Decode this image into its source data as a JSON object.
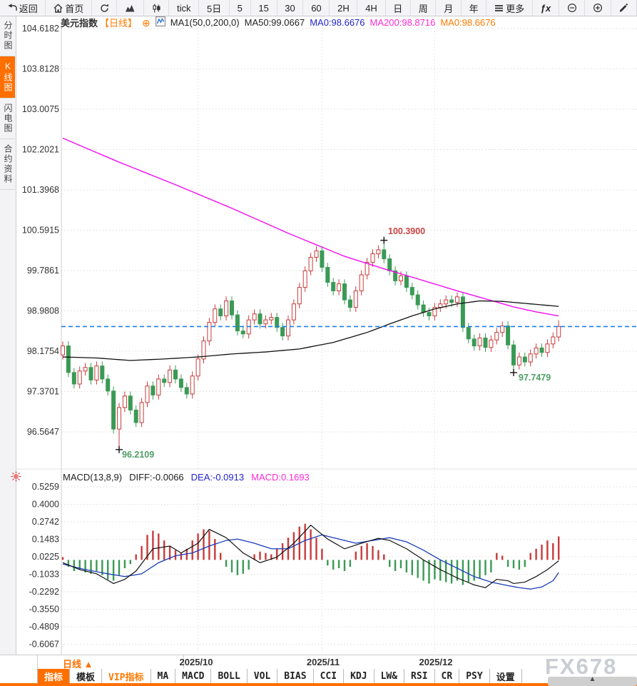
{
  "toolbar": {
    "items": [
      {
        "name": "back-button",
        "icon": "back-arrow-icon",
        "label": "返回"
      },
      {
        "name": "home-button",
        "icon": "home-icon",
        "label": "首页"
      },
      {
        "name": "refresh-button",
        "icon": "refresh-icon",
        "label": ""
      },
      {
        "name": "line-chart-button",
        "icon": "mountain-chart-icon",
        "label": ""
      },
      {
        "name": "candlestick-chart-button",
        "icon": "candlestick-icon",
        "label": ""
      },
      {
        "name": "period-tick-button",
        "icon": "",
        "label": "tick"
      },
      {
        "name": "period-5d-button",
        "icon": "",
        "label": "5日"
      },
      {
        "name": "period-5-button",
        "icon": "",
        "label": "5"
      },
      {
        "name": "period-15-button",
        "icon": "",
        "label": "15"
      },
      {
        "name": "period-30-button",
        "icon": "",
        "label": "30"
      },
      {
        "name": "period-60-button",
        "icon": "",
        "label": "60"
      },
      {
        "name": "period-2h-button",
        "icon": "",
        "label": "2H"
      },
      {
        "name": "period-4h-button",
        "icon": "",
        "label": "4H"
      },
      {
        "name": "period-day-button",
        "icon": "",
        "label": "日"
      },
      {
        "name": "period-week-button",
        "icon": "",
        "label": "周"
      },
      {
        "name": "period-month-button",
        "icon": "",
        "label": "月"
      },
      {
        "name": "period-year-button",
        "icon": "",
        "label": "年"
      },
      {
        "name": "more-button",
        "icon": "menu-icon",
        "label": "更多"
      },
      {
        "name": "formula-button",
        "icon": "",
        "label": "ƒx"
      },
      {
        "name": "zoom-out-button",
        "icon": "zoom-out-icon",
        "label": ""
      },
      {
        "name": "zoom-in-button",
        "icon": "zoom-in-icon",
        "label": ""
      },
      {
        "name": "draw-button",
        "icon": "pencil-icon",
        "label": ""
      }
    ]
  },
  "legend": {
    "symbol": "美元指数",
    "period": "【日线】",
    "add_glyph": "⊕",
    "ma_settings": "MA1(50,0,200,0)",
    "ma50": "MA50:99.0667",
    "ma0_blue": "MA0:98.6676",
    "ma200": "MA200:98.8716",
    "ma0_orange": "MA0:98.6676"
  },
  "sidebar": {
    "items": [
      {
        "name": "minute-chart-tab",
        "label": "分时图",
        "active": false
      },
      {
        "name": "kline-chart-tab",
        "label": "K线图",
        "active": true
      },
      {
        "name": "lightning-chart-tab",
        "label": "闪电图",
        "active": false
      },
      {
        "name": "contract-info-tab",
        "label": "合约资料",
        "active": false
      }
    ]
  },
  "macd_header": {
    "title": "MACD(13,8,9)",
    "diff": "DIFF:-0.0066",
    "dea": "DEA:-0.0913",
    "macd": "MACD:0.1693"
  },
  "bottom_axis": {
    "period_label": "日线 ▲",
    "months": [
      "2025/10",
      "2025/11",
      "2025/12"
    ]
  },
  "tabs": [
    {
      "name": "indicator-tab",
      "label": "指标",
      "style": "active"
    },
    {
      "name": "template-tab",
      "label": "模板",
      "style": ""
    },
    {
      "name": "vip-indicator-tab",
      "label": "VIP指标",
      "style": "vip"
    },
    {
      "name": "ma-tab",
      "label": "MA",
      "style": ""
    },
    {
      "name": "macd-tab",
      "label": "MACD",
      "style": ""
    },
    {
      "name": "boll-tab",
      "label": "BOLL",
      "style": ""
    },
    {
      "name": "vol-tab",
      "label": "VOL",
      "style": ""
    },
    {
      "name": "bias-tab",
      "label": "BIAS",
      "style": ""
    },
    {
      "name": "cci-tab",
      "label": "CCI",
      "style": ""
    },
    {
      "name": "kdj-tab",
      "label": "KDJ",
      "style": ""
    },
    {
      "name": "lw-tab",
      "label": "LW&",
      "style": ""
    },
    {
      "name": "rsi-tab",
      "label": "RSI",
      "style": ""
    },
    {
      "name": "cr-tab",
      "label": "CR",
      "style": ""
    },
    {
      "name": "psy-tab",
      "label": "PSY",
      "style": ""
    },
    {
      "name": "settings-tab",
      "label": "设置",
      "style": ""
    }
  ],
  "watermark": "FX678",
  "icons": {
    "collapse_arrow": "▲"
  },
  "colors": {
    "accent_orange": "#ff6f00",
    "candle_up": "#c73b3b",
    "candle_down": "#3a9a55",
    "ma50": "#111111",
    "ma200": "#f20df2",
    "dea_blue": "#1a3dbb",
    "diff_black": "#111111",
    "current_price_line": "#1f7fe8",
    "annotation_high": "#cc4444",
    "annotation_low": "#4d9e63"
  },
  "chart_data": {
    "type": "candlestick+macd",
    "title": "美元指数 日线",
    "price_axis": {
      "ticks": [
        104.6182,
        103.8128,
        103.0075,
        102.2021,
        101.3968,
        100.5915,
        99.7861,
        98.9808,
        98.1754,
        97.3701,
        96.5647
      ]
    },
    "macd_axis": {
      "ticks": [
        0.5259,
        0.4,
        0.2742,
        0.1483,
        0.0225,
        -0.1033,
        -0.2292,
        -0.355,
        -0.4809,
        -0.6067
      ]
    },
    "current_price": 98.6676,
    "x_months": [
      {
        "label": "2025/10",
        "index": 24
      },
      {
        "label": "2025/11",
        "index": 46
      },
      {
        "label": "2025/12",
        "index": 66
      }
    ],
    "candles": {
      "first_open": 98.1,
      "wick": 0.09,
      "closes": [
        98.28,
        97.75,
        97.52,
        97.78,
        97.85,
        97.6,
        97.88,
        97.62,
        97.38,
        96.62,
        97.05,
        97.28,
        97.0,
        96.75,
        97.15,
        97.48,
        97.3,
        97.62,
        97.55,
        97.8,
        97.62,
        97.45,
        97.32,
        97.68,
        98.02,
        98.38,
        98.75,
        99.02,
        98.88,
        99.18,
        98.9,
        98.58,
        98.52,
        98.8,
        98.92,
        98.72,
        98.8,
        98.85,
        98.65,
        98.48,
        98.8,
        99.12,
        99.45,
        99.78,
        100.05,
        100.18,
        99.85,
        99.55,
        99.38,
        99.52,
        99.2,
        99.05,
        99.38,
        99.7,
        99.95,
        100.12,
        100.2,
        100.02,
        99.78,
        99.58,
        99.68,
        99.45,
        99.3,
        99.1,
        98.95,
        98.88,
        99.05,
        99.12,
        99.2,
        99.15,
        99.26,
        98.65,
        98.42,
        98.28,
        98.44,
        98.25,
        98.4,
        98.55,
        98.68,
        98.3,
        97.9,
        98.06,
        97.96,
        98.12,
        98.24,
        98.15,
        98.32,
        98.46,
        98.67
      ],
      "overrides": {
        "10": {
          "low": 96.2109
        },
        "57": {
          "high": 100.39
        },
        "80": {
          "low": 97.7479
        },
        "88": {
          "high": 98.79
        }
      }
    },
    "ma50_points": [
      [
        0,
        98.06
      ],
      [
        6,
        98.04
      ],
      [
        12,
        97.99
      ],
      [
        18,
        98.02
      ],
      [
        24,
        98.06
      ],
      [
        30,
        98.12
      ],
      [
        36,
        98.16
      ],
      [
        42,
        98.22
      ],
      [
        48,
        98.35
      ],
      [
        54,
        98.55
      ],
      [
        58,
        98.72
      ],
      [
        62,
        98.88
      ],
      [
        66,
        99.02
      ],
      [
        70,
        99.12
      ],
      [
        74,
        99.18
      ],
      [
        78,
        99.17
      ],
      [
        82,
        99.13
      ],
      [
        85,
        99.1
      ],
      [
        88,
        99.07
      ]
    ],
    "ma200_points": [
      [
        0,
        102.43
      ],
      [
        10,
        101.95
      ],
      [
        20,
        101.5
      ],
      [
        30,
        101.03
      ],
      [
        40,
        100.53
      ],
      [
        50,
        100.07
      ],
      [
        57,
        99.82
      ],
      [
        63,
        99.62
      ],
      [
        70,
        99.38
      ],
      [
        75,
        99.22
      ],
      [
        80,
        99.06
      ],
      [
        84,
        98.96
      ],
      [
        88,
        98.88
      ]
    ],
    "macd": {
      "hist": [
        0.02,
        -0.05,
        -0.08,
        -0.07,
        -0.09,
        -0.1,
        -0.08,
        -0.11,
        -0.14,
        -0.15,
        -0.11,
        -0.06,
        -0.03,
        0.04,
        0.1,
        0.18,
        0.21,
        0.19,
        0.14,
        0.1,
        0.07,
        0.05,
        0.08,
        0.14,
        0.19,
        0.22,
        0.21,
        0.15,
        0.05,
        -0.05,
        -0.09,
        -0.11,
        -0.1,
        -0.07,
        0.04,
        0.06,
        0.05,
        0.04,
        0.08,
        0.12,
        0.16,
        0.2,
        0.24,
        0.26,
        0.22,
        0.16,
        0.08,
        -0.04,
        -0.07,
        -0.06,
        -0.08,
        -0.05,
        0.06,
        0.1,
        0.12,
        0.1,
        0.07,
        0.04,
        -0.05,
        -0.08,
        -0.06,
        -0.09,
        -0.11,
        -0.13,
        -0.15,
        -0.17,
        -0.14,
        -0.15,
        -0.16,
        -0.17,
        -0.15,
        -0.18,
        -0.16,
        -0.15,
        -0.13,
        -0.11,
        -0.09,
        0.05,
        0.03,
        -0.05,
        -0.06,
        -0.07,
        -0.05,
        0.05,
        0.08,
        0.11,
        0.14,
        0.12,
        0.169
      ],
      "diff_points": [
        [
          0,
          -0.02
        ],
        [
          3,
          -0.07
        ],
        [
          6,
          -0.1
        ],
        [
          9,
          -0.17
        ],
        [
          11,
          -0.14
        ],
        [
          13,
          -0.08
        ],
        [
          16,
          0.08
        ],
        [
          19,
          0.1
        ],
        [
          21,
          0.05
        ],
        [
          24,
          0.12
        ],
        [
          26,
          0.22
        ],
        [
          29,
          0.16
        ],
        [
          32,
          0.05
        ],
        [
          35,
          -0.02
        ],
        [
          38,
          0.02
        ],
        [
          41,
          0.12
        ],
        [
          44,
          0.25
        ],
        [
          47,
          0.15
        ],
        [
          50,
          0.08
        ],
        [
          53,
          0.12
        ],
        [
          56,
          0.155
        ],
        [
          58,
          0.14
        ],
        [
          61,
          0.08
        ],
        [
          64,
          0.0
        ],
        [
          67,
          -0.07
        ],
        [
          70,
          -0.13
        ],
        [
          73,
          -0.18
        ],
        [
          75,
          -0.2
        ],
        [
          77,
          -0.14
        ],
        [
          79,
          -0.15
        ],
        [
          80,
          -0.17
        ],
        [
          82,
          -0.16
        ],
        [
          84,
          -0.12
        ],
        [
          86,
          -0.07
        ],
        [
          88,
          -0.0066
        ]
      ],
      "dea_points": [
        [
          0,
          -0.03
        ],
        [
          4,
          -0.07
        ],
        [
          8,
          -0.1
        ],
        [
          11,
          -0.12
        ],
        [
          14,
          -0.1
        ],
        [
          17,
          -0.02
        ],
        [
          20,
          0.03
        ],
        [
          23,
          0.05
        ],
        [
          26,
          0.1
        ],
        [
          29,
          0.14
        ],
        [
          31,
          0.15
        ],
        [
          34,
          0.12
        ],
        [
          37,
          0.08
        ],
        [
          40,
          0.08
        ],
        [
          43,
          0.14
        ],
        [
          46,
          0.18
        ],
        [
          49,
          0.15
        ],
        [
          52,
          0.12
        ],
        [
          55,
          0.14
        ],
        [
          58,
          0.16
        ],
        [
          61,
          0.13
        ],
        [
          64,
          0.07
        ],
        [
          67,
          0.0
        ],
        [
          70,
          -0.06
        ],
        [
          73,
          -0.12
        ],
        [
          76,
          -0.16
        ],
        [
          79,
          -0.185
        ],
        [
          81,
          -0.2
        ],
        [
          83,
          -0.21
        ],
        [
          85,
          -0.195
        ],
        [
          87,
          -0.15
        ],
        [
          88,
          -0.0913
        ]
      ]
    },
    "annotations": [
      {
        "text": "100.3900",
        "candle_index": 57,
        "value": 100.39,
        "kind": "high"
      },
      {
        "text": "97.7479",
        "candle_index": 80,
        "value": 97.7479,
        "kind": "low"
      },
      {
        "text": "96.2109",
        "candle_index": 10,
        "value": 96.2109,
        "kind": "low"
      }
    ]
  }
}
